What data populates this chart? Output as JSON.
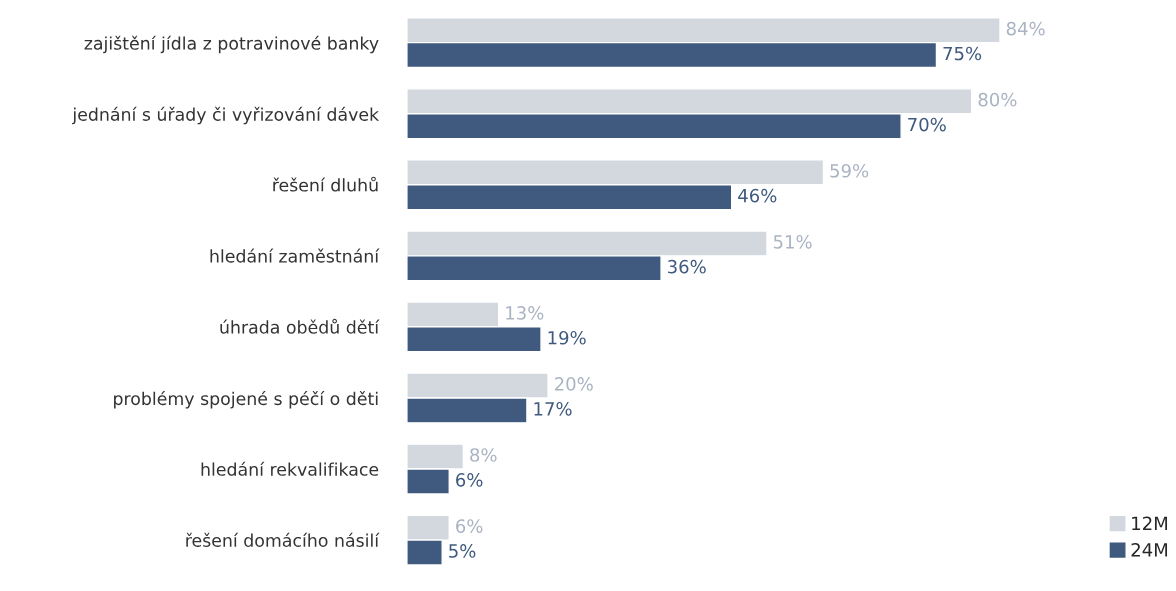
{
  "chart_data": {
    "type": "bar",
    "orientation": "horizontal",
    "categories": [
      "zajištění jídla z potravinové banky",
      "jednání s úřady či vyřizování dávek",
      "řešení dluhů",
      "hledání zaměstnání",
      "úhrada obědů dětí",
      "problémy spojené s péčí o děti",
      "hledání rekvalifikace",
      "řešení domácího násilí"
    ],
    "series": [
      {
        "name": "12M",
        "color": "#d3d8df",
        "values": [
          84,
          80,
          59,
          51,
          13,
          20,
          8,
          6
        ],
        "value_labels": [
          "84%",
          "80%",
          "59%",
          "51%",
          "13%",
          "20%",
          "8%",
          "6%"
        ]
      },
      {
        "name": "24M",
        "color": "#3f5a7e",
        "values": [
          75,
          70,
          46,
          36,
          19,
          17,
          6,
          5
        ],
        "value_labels": [
          "75%",
          "70%",
          "46%",
          "36%",
          "19%",
          "17%",
          "6%",
          "5%"
        ]
      }
    ],
    "legend": "bottom right"
  }
}
